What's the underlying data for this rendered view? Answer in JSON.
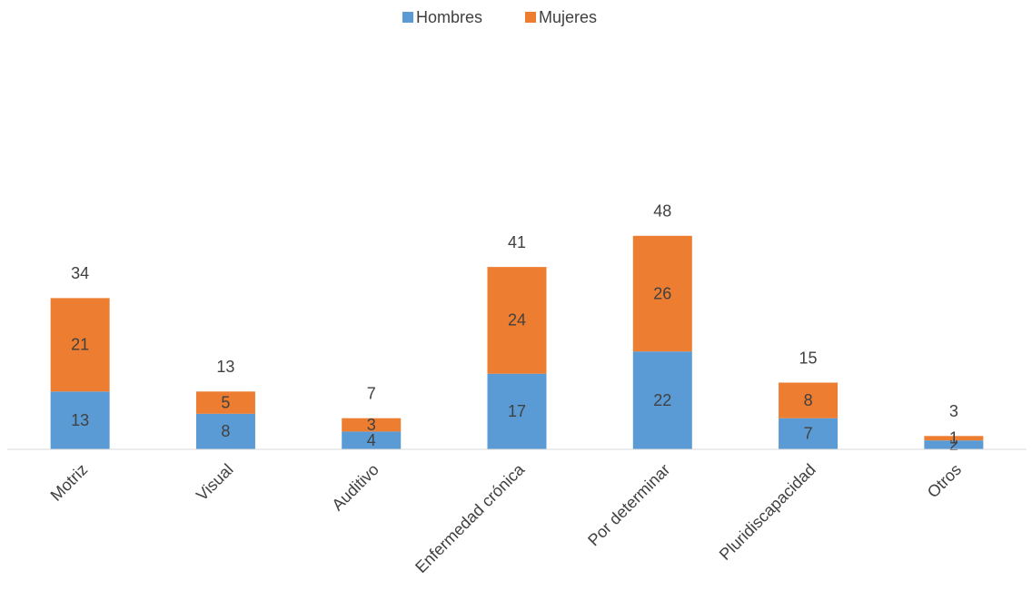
{
  "chart_data": {
    "type": "stacked_bar",
    "categories": [
      "Motriz",
      "Visual",
      "Auditivo",
      "Enfermedad crónica",
      "Por determinar",
      "Pluridiscapacidad",
      "Otros"
    ],
    "series": [
      {
        "name": "Hombres",
        "color": "#5b9bd5",
        "values": [
          13,
          8,
          4,
          17,
          22,
          7,
          2
        ]
      },
      {
        "name": "Mujeres",
        "color": "#ed7d31",
        "values": [
          21,
          5,
          3,
          24,
          26,
          8,
          1
        ]
      }
    ],
    "totals": [
      34,
      13,
      7,
      41,
      48,
      15,
      3
    ],
    "legend": "top"
  }
}
